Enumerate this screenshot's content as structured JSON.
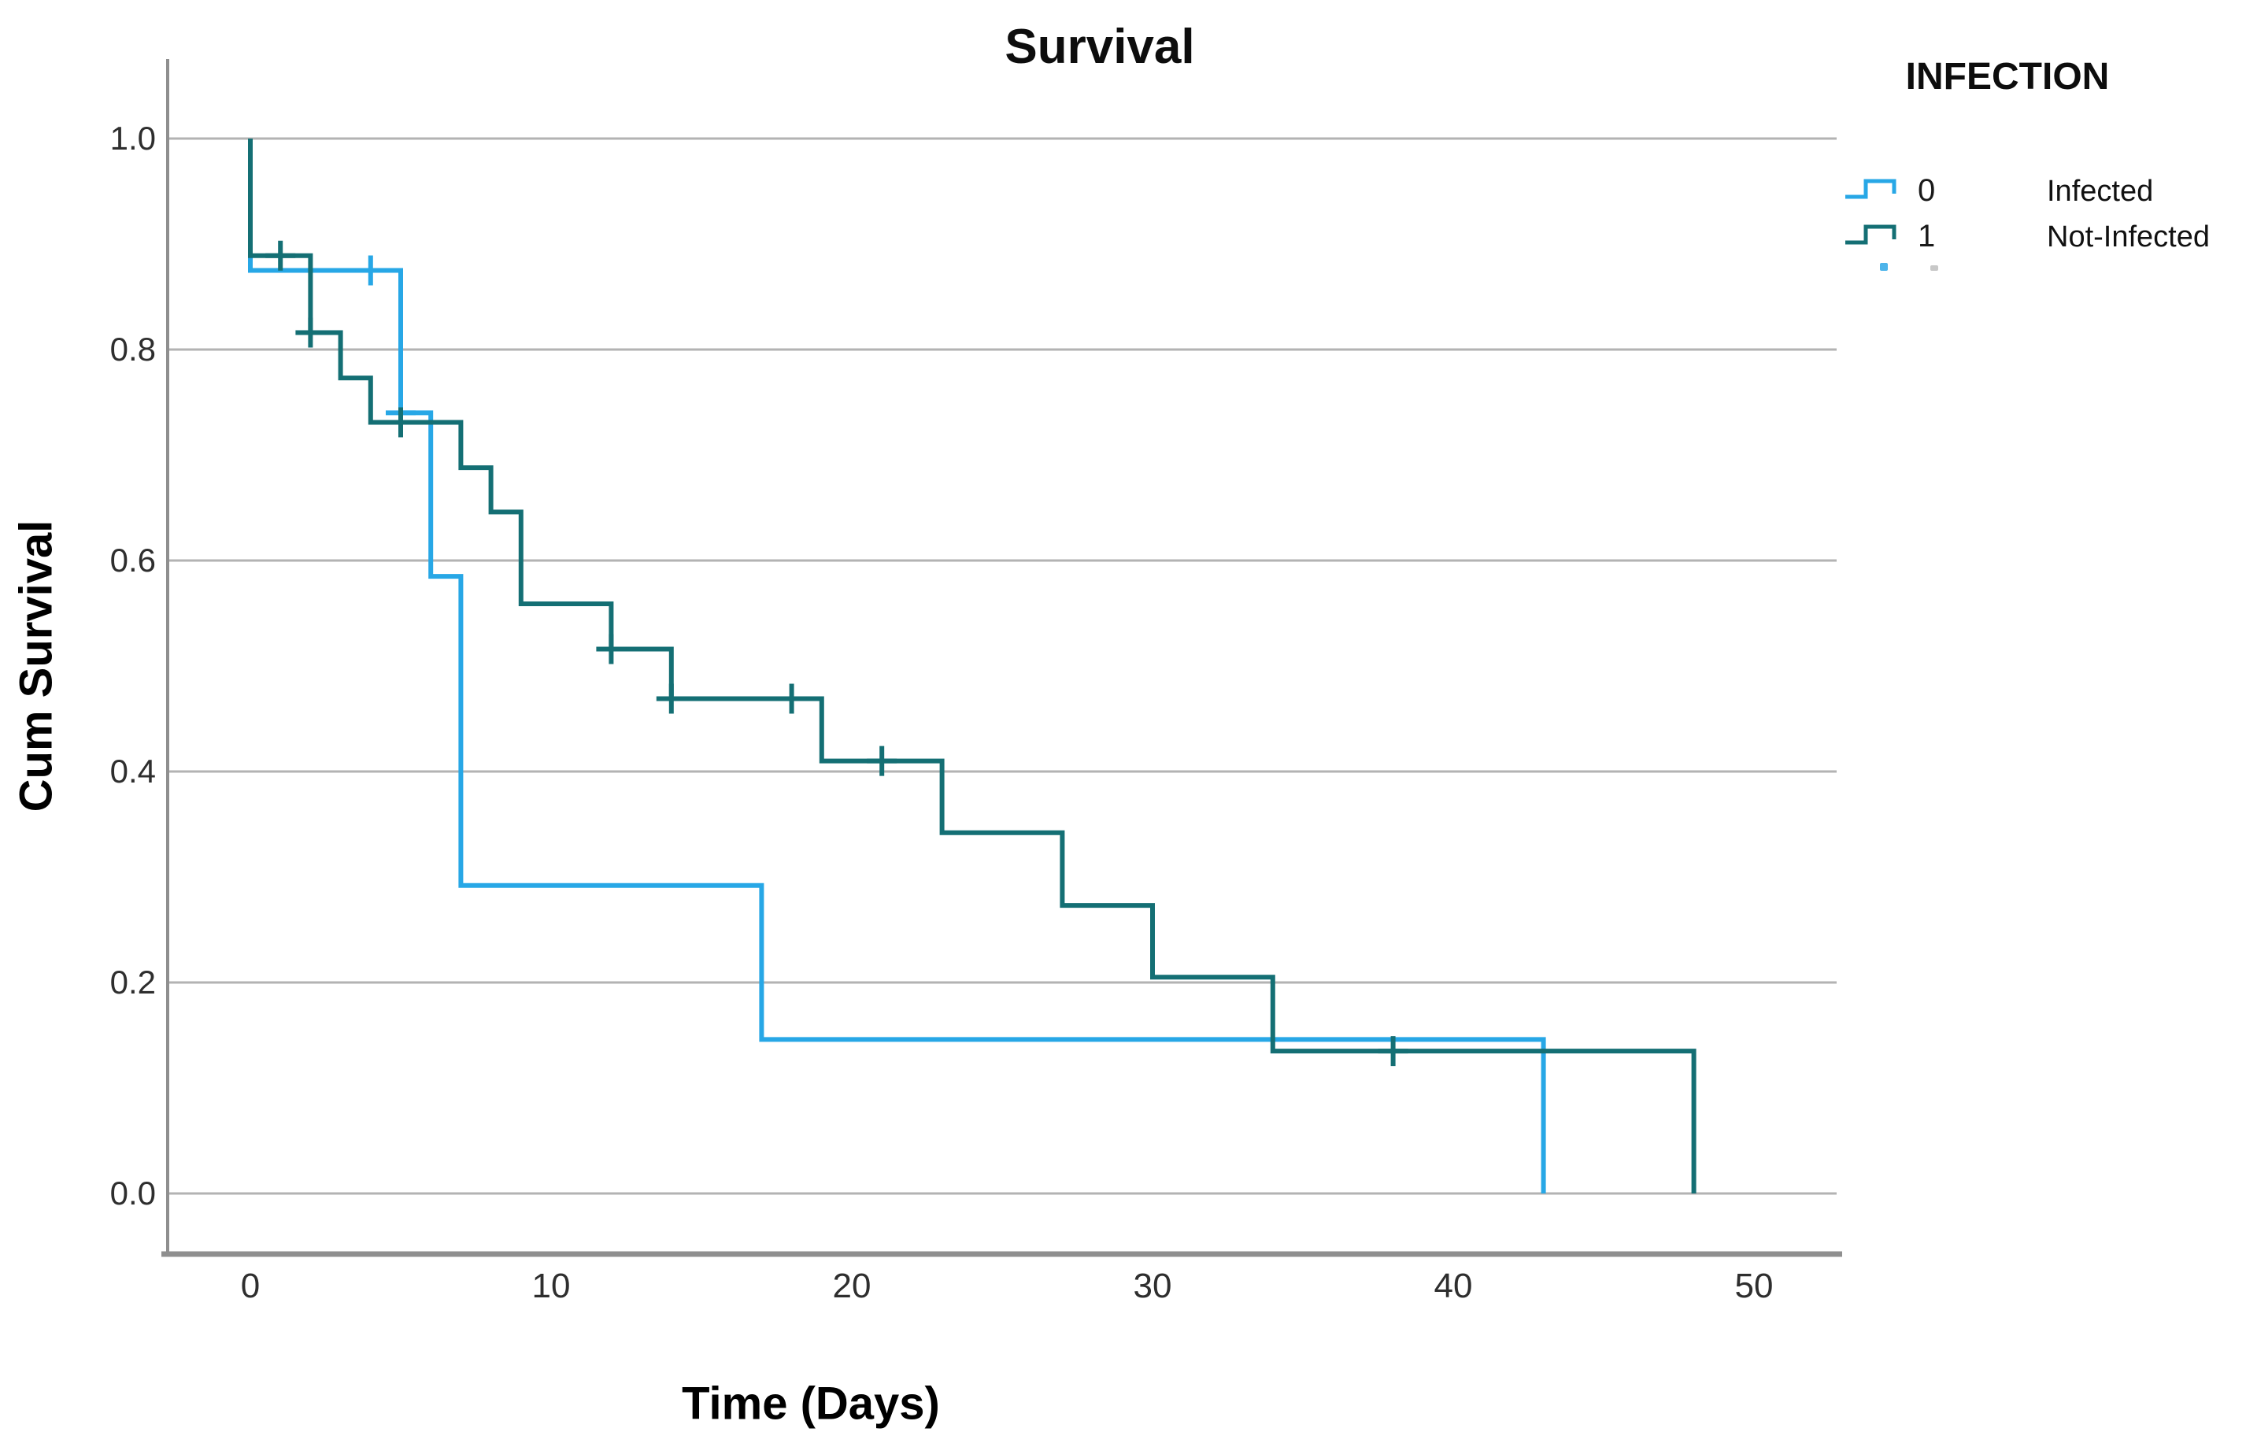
{
  "title": "Survival",
  "axes": {
    "x": {
      "label": "Time (Days)",
      "ticks": [
        "0",
        "10",
        "20",
        "30",
        "40",
        "50"
      ],
      "min": 0,
      "max": 50
    },
    "y": {
      "label": "Cum Survival",
      "ticks": [
        "0.0",
        "0.2",
        "0.4",
        "0.6",
        "0.8",
        "1.0"
      ],
      "min": 0.0,
      "max": 1.0
    }
  },
  "legend": {
    "title": "INFECTION",
    "entries": [
      {
        "code": "0",
        "label": "Infected",
        "color": "#27a7e6"
      },
      {
        "code": "1",
        "label": "Not-Infected",
        "color": "#146f74"
      }
    ]
  },
  "chart_data": {
    "type": "line",
    "subtype": "kaplan-meier-step-survival",
    "title": "Survival",
    "xlabel": "Time (Days)",
    "ylabel": "Cum Survival",
    "xlim": [
      0,
      50
    ],
    "ylim": [
      0.0,
      1.0
    ],
    "grid": true,
    "legend_position": "top-right-outside",
    "series": [
      {
        "name": "Infected",
        "group_code": "0",
        "color": "#27a7e6",
        "start": {
          "t": 0,
          "s": 1.0
        },
        "steps": [
          {
            "t": 0,
            "s": 0.875
          },
          {
            "t": 5,
            "s": 0.74
          },
          {
            "t": 6,
            "s": 0.585
          },
          {
            "t": 7,
            "s": 0.292
          },
          {
            "t": 17,
            "s": 0.146
          },
          {
            "t": 43,
            "s": 0.0
          }
        ],
        "censored": [
          {
            "t": 4,
            "s": 0.875
          },
          {
            "t": 5,
            "s": 0.74
          }
        ]
      },
      {
        "name": "Not-Infected",
        "group_code": "1",
        "color": "#146f74",
        "start": {
          "t": 0,
          "s": 1.0
        },
        "steps": [
          {
            "t": 0,
            "s": 0.889
          },
          {
            "t": 2,
            "s": 0.816
          },
          {
            "t": 3,
            "s": 0.773
          },
          {
            "t": 4,
            "s": 0.731
          },
          {
            "t": 7,
            "s": 0.688
          },
          {
            "t": 8,
            "s": 0.646
          },
          {
            "t": 9,
            "s": 0.559
          },
          {
            "t": 12,
            "s": 0.516
          },
          {
            "t": 14,
            "s": 0.469
          },
          {
            "t": 19,
            "s": 0.41
          },
          {
            "t": 23,
            "s": 0.342
          },
          {
            "t": 27,
            "s": 0.273
          },
          {
            "t": 30,
            "s": 0.205
          },
          {
            "t": 34,
            "s": 0.135
          },
          {
            "t": 48,
            "s": 0.0
          }
        ],
        "censored": [
          {
            "t": 1,
            "s": 0.889
          },
          {
            "t": 2,
            "s": 0.816
          },
          {
            "t": 5,
            "s": 0.731
          },
          {
            "t": 12,
            "s": 0.516
          },
          {
            "t": 14,
            "s": 0.469
          },
          {
            "t": 18,
            "s": 0.469
          },
          {
            "t": 21,
            "s": 0.41
          },
          {
            "t": 38,
            "s": 0.135
          }
        ]
      }
    ]
  },
  "style_colors": {
    "gridline": "#b3b3b3",
    "axis_line": "#8f8f8f",
    "tick_text": "#2e2e2e"
  }
}
